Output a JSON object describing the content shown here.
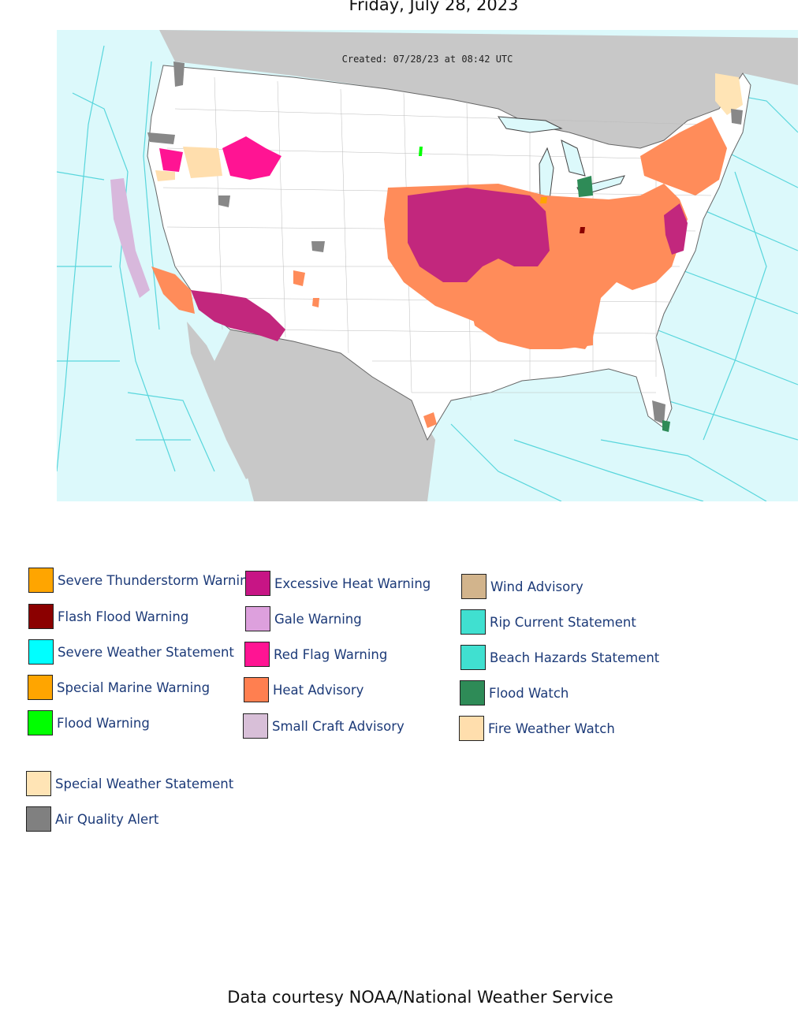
{
  "date": "Friday, July 28, 2023",
  "created_stamp": "Created: 07/28/23 at 08:42 UTC",
  "credit": "Data courtesy NOAA/National Weather Service",
  "colors": {
    "water": "#dcf9fb",
    "land_foreign": "#c8c8c8",
    "land_us": "#ffffff",
    "marine_lines": "#58d6dc"
  },
  "legend": [
    {
      "label": "Severe Thunderstorm Warning",
      "color": "#ffa500"
    },
    {
      "label": "Flash Flood Warning",
      "color": "#8b0000"
    },
    {
      "label": "Severe Weather Statement",
      "color": "#00ffff"
    },
    {
      "label": "Special Marine Warning",
      "color": "#ffa500"
    },
    {
      "label": "Flood Warning",
      "color": "#00ff00"
    },
    {
      "label": "Special Weather Statement",
      "color": "#ffe4b5"
    },
    {
      "label": "Air Quality Alert",
      "color": "#808080"
    },
    {
      "label": "Excessive Heat Warning",
      "color": "#c71585"
    },
    {
      "label": "Gale Warning",
      "color": "#dda0dd"
    },
    {
      "label": "Red Flag Warning",
      "color": "#ff1493"
    },
    {
      "label": "Heat Advisory",
      "color": "#ff7f50"
    },
    {
      "label": "Small Craft Advisory",
      "color": "#d8bfd8"
    },
    {
      "label": "Wind Advisory",
      "color": "#d2b48c"
    },
    {
      "label": "Rip Current Statement",
      "color": "#40e0d0"
    },
    {
      "label": "Beach Hazards Statement",
      "color": "#40e0d0"
    },
    {
      "label": "Flood Watch",
      "color": "#2e8b57"
    },
    {
      "label": "Fire Weather Watch",
      "color": "#ffdead"
    }
  ]
}
